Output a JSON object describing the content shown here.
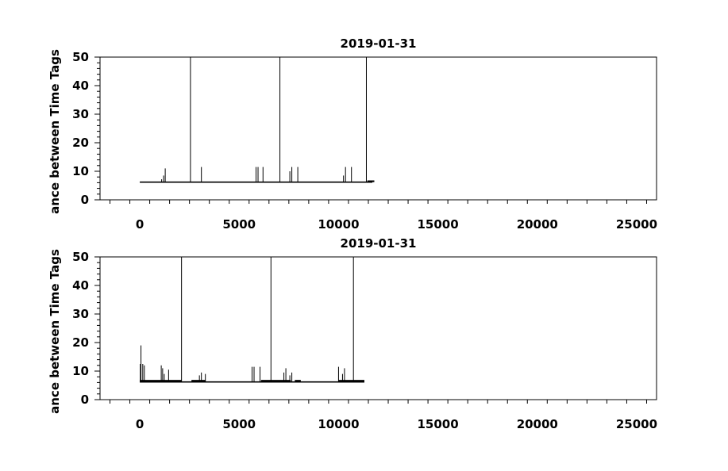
{
  "chart_data": [
    {
      "type": "line",
      "title": "2019-01-31",
      "xlabel": "",
      "ylabel": "ance between Time Tags",
      "xlim": [
        -2000,
        26000
      ],
      "ylim": [
        0,
        50
      ],
      "xticks": [
        0,
        5000,
        10000,
        15000,
        20000,
        25000
      ],
      "xtick_labels": [
        "0",
        "5000",
        "10000",
        "15000",
        "20000",
        "25000"
      ],
      "yticks": [
        0,
        10,
        20,
        30,
        40,
        50
      ],
      "ytick_labels": [
        "0",
        "10",
        "20",
        "30",
        "40",
        "50"
      ],
      "grid": false,
      "baseline": 6.2,
      "x_end": 11700,
      "end_band": [
        11450,
        11800,
        6.8
      ],
      "spikes": [
        {
          "x": 1100,
          "y": 7.2
        },
        {
          "x": 1200,
          "y": 8.5
        },
        {
          "x": 1280,
          "y": 11
        },
        {
          "x": 2550,
          "y": 50
        },
        {
          "x": 3100,
          "y": 11.5
        },
        {
          "x": 5850,
          "y": 11.5
        },
        {
          "x": 5950,
          "y": 11.5
        },
        {
          "x": 6200,
          "y": 11.5
        },
        {
          "x": 7050,
          "y": 50
        },
        {
          "x": 7550,
          "y": 10
        },
        {
          "x": 7650,
          "y": 11.5
        },
        {
          "x": 7950,
          "y": 11.5
        },
        {
          "x": 10250,
          "y": 8.5
        },
        {
          "x": 10350,
          "y": 11.5
        },
        {
          "x": 10650,
          "y": 11.5
        },
        {
          "x": 11400,
          "y": 50
        }
      ]
    },
    {
      "type": "line",
      "title": "2019-01-31",
      "xlabel": "",
      "ylabel": "ance between Time Tags",
      "xlim": [
        -2000,
        26000
      ],
      "ylim": [
        0,
        50
      ],
      "xticks": [
        0,
        5000,
        10000,
        15000,
        20000,
        25000
      ],
      "xtick_labels": [
        "0",
        "5000",
        "10000",
        "15000",
        "20000",
        "25000"
      ],
      "yticks": [
        0,
        10,
        20,
        30,
        40,
        50
      ],
      "ytick_labels": [
        "0",
        "10",
        "20",
        "30",
        "40",
        "50"
      ],
      "grid": false,
      "baseline": 6.2,
      "x_end": 11300,
      "bands": [
        [
          0,
          2100,
          6.9
        ],
        [
          2600,
          3300,
          6.9
        ],
        [
          6100,
          7600,
          6.9
        ],
        [
          7800,
          8100,
          6.9
        ],
        [
          10000,
          11300,
          6.9
        ]
      ],
      "spikes": [
        {
          "x": 30,
          "y": 12.5
        },
        {
          "x": 60,
          "y": 19
        },
        {
          "x": 150,
          "y": 12.5
        },
        {
          "x": 230,
          "y": 12
        },
        {
          "x": 1080,
          "y": 12
        },
        {
          "x": 1150,
          "y": 11
        },
        {
          "x": 1230,
          "y": 9
        },
        {
          "x": 1450,
          "y": 10.5
        },
        {
          "x": 2100,
          "y": 50
        },
        {
          "x": 3000,
          "y": 8.5
        },
        {
          "x": 3100,
          "y": 9.5
        },
        {
          "x": 3300,
          "y": 9
        },
        {
          "x": 5650,
          "y": 11.5
        },
        {
          "x": 5750,
          "y": 11.5
        },
        {
          "x": 6050,
          "y": 11.5
        },
        {
          "x": 6600,
          "y": 50
        },
        {
          "x": 7250,
          "y": 9.5
        },
        {
          "x": 7350,
          "y": 11
        },
        {
          "x": 7550,
          "y": 8.5
        },
        {
          "x": 7650,
          "y": 9.5
        },
        {
          "x": 10000,
          "y": 11.5
        },
        {
          "x": 10200,
          "y": 9
        },
        {
          "x": 10300,
          "y": 11
        },
        {
          "x": 10750,
          "y": 50
        }
      ]
    }
  ]
}
